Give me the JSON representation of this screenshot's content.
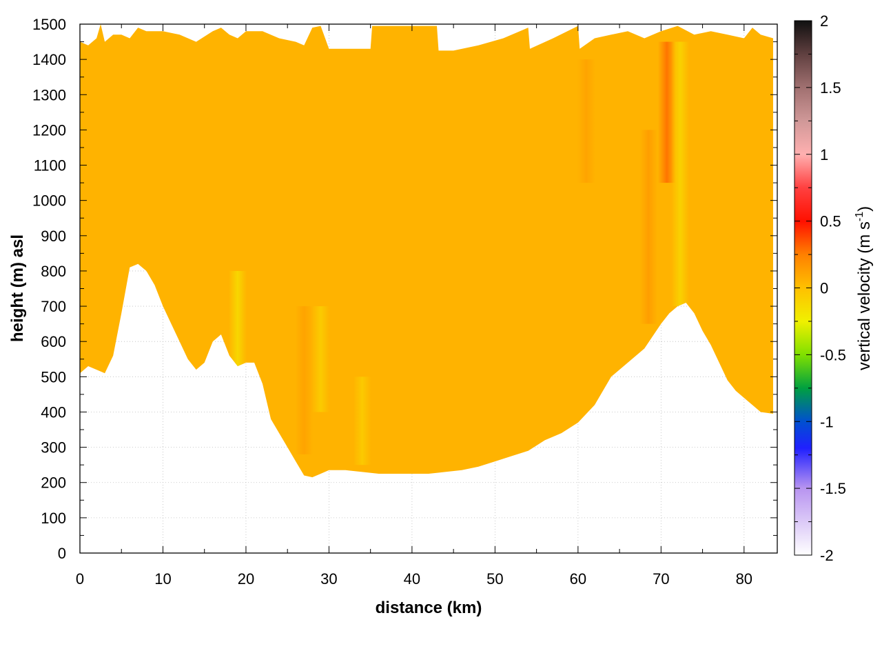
{
  "chart_data": {
    "type": "heatmap",
    "title": "",
    "xlabel": "distance (km)",
    "ylabel": "height (m) asl",
    "xlim": [
      0,
      84
    ],
    "ylim": [
      0,
      1500
    ],
    "x_ticks": [
      0,
      10,
      20,
      30,
      40,
      50,
      60,
      70,
      80
    ],
    "y_ticks": [
      0,
      100,
      200,
      300,
      400,
      500,
      600,
      700,
      800,
      900,
      1000,
      1100,
      1200,
      1300,
      1400,
      1500
    ],
    "x_tick_labels": [
      "0",
      "10",
      "20",
      "30",
      "40",
      "50",
      "60",
      "70",
      "80"
    ],
    "y_tick_labels": [
      "0",
      "100",
      "200",
      "300",
      "400",
      "500",
      "600",
      "700",
      "800",
      "900",
      "1000",
      "1100",
      "1200",
      "1300",
      "1400",
      "1500"
    ],
    "grid": true,
    "colorbar": {
      "label_main": "vertical velocity (m s",
      "label_sup": "-1",
      "label_close": ")",
      "range": [
        -2,
        2
      ],
      "ticks": [
        2,
        1.5,
        1,
        0.5,
        0,
        -0.5,
        -1,
        -1.5,
        -2
      ],
      "tick_labels": [
        "2",
        "1.5",
        "1",
        "0.5",
        "0",
        "-0.5",
        "-1",
        "-1.5",
        "-2"
      ],
      "stops": [
        {
          "value": -2.0,
          "color": "#ffffff"
        },
        {
          "value": -1.5,
          "color": "#b894f0"
        },
        {
          "value": -1.2,
          "color": "#2020ff"
        },
        {
          "value": -1.0,
          "color": "#0050d0"
        },
        {
          "value": -0.75,
          "color": "#00a040"
        },
        {
          "value": -0.5,
          "color": "#80e000"
        },
        {
          "value": -0.25,
          "color": "#f0f000"
        },
        {
          "value": 0.0,
          "color": "#ffc000"
        },
        {
          "value": 0.25,
          "color": "#ff8000"
        },
        {
          "value": 0.5,
          "color": "#ff1000"
        },
        {
          "value": 0.75,
          "color": "#ff4040"
        },
        {
          "value": 1.0,
          "color": "#ffb0b0"
        },
        {
          "value": 1.25,
          "color": "#d09898"
        },
        {
          "value": 1.5,
          "color": "#a07070"
        },
        {
          "value": 1.75,
          "color": "#604040"
        },
        {
          "value": 2.0,
          "color": "#101010"
        }
      ]
    },
    "field": {
      "dominant_value": 0.05,
      "bottom_boundary": [
        [
          0,
          510
        ],
        [
          1,
          530
        ],
        [
          2,
          520
        ],
        [
          3,
          510
        ],
        [
          4,
          560
        ],
        [
          5,
          680
        ],
        [
          6,
          810
        ],
        [
          7,
          820
        ],
        [
          8,
          800
        ],
        [
          9,
          760
        ],
        [
          10,
          700
        ],
        [
          11,
          650
        ],
        [
          12,
          600
        ],
        [
          13,
          550
        ],
        [
          14,
          520
        ],
        [
          15,
          540
        ],
        [
          16,
          600
        ],
        [
          17,
          620
        ],
        [
          18,
          560
        ],
        [
          19,
          530
        ],
        [
          20,
          540
        ],
        [
          21,
          540
        ],
        [
          22,
          480
        ],
        [
          23,
          380
        ],
        [
          24,
          340
        ],
        [
          25,
          300
        ],
        [
          26,
          260
        ],
        [
          27,
          220
        ],
        [
          28,
          215
        ],
        [
          29,
          225
        ],
        [
          30,
          235
        ],
        [
          32,
          235
        ],
        [
          34,
          230
        ],
        [
          36,
          225
        ],
        [
          38,
          225
        ],
        [
          40,
          225
        ],
        [
          42,
          225
        ],
        [
          44,
          230
        ],
        [
          46,
          235
        ],
        [
          48,
          245
        ],
        [
          50,
          260
        ],
        [
          52,
          275
        ],
        [
          54,
          290
        ],
        [
          56,
          320
        ],
        [
          58,
          340
        ],
        [
          60,
          370
        ],
        [
          62,
          420
        ],
        [
          63,
          460
        ],
        [
          64,
          500
        ],
        [
          66,
          540
        ],
        [
          68,
          580
        ],
        [
          70,
          650
        ],
        [
          71,
          680
        ],
        [
          72,
          700
        ],
        [
          73,
          710
        ],
        [
          74,
          680
        ],
        [
          75,
          630
        ],
        [
          76,
          590
        ],
        [
          77,
          540
        ],
        [
          78,
          490
        ],
        [
          79,
          460
        ],
        [
          80,
          440
        ],
        [
          81,
          420
        ],
        [
          82,
          400
        ],
        [
          83.5,
          395
        ]
      ],
      "top_boundary": [
        [
          0,
          1450
        ],
        [
          1,
          1440
        ],
        [
          2,
          1460
        ],
        [
          2.5,
          1500
        ],
        [
          3,
          1450
        ],
        [
          4,
          1470
        ],
        [
          5,
          1470
        ],
        [
          6,
          1460
        ],
        [
          7,
          1490
        ],
        [
          8,
          1480
        ],
        [
          10,
          1480
        ],
        [
          12,
          1470
        ],
        [
          14,
          1450
        ],
        [
          16,
          1480
        ],
        [
          17,
          1490
        ],
        [
          18,
          1470
        ],
        [
          19,
          1460
        ],
        [
          20,
          1480
        ],
        [
          22,
          1480
        ],
        [
          24,
          1460
        ],
        [
          26,
          1450
        ],
        [
          27,
          1440
        ],
        [
          28,
          1490
        ],
        [
          29,
          1495
        ],
        [
          30,
          1430
        ],
        [
          33,
          1430
        ],
        [
          35,
          1430
        ],
        [
          35.2,
          1495
        ],
        [
          43,
          1495
        ],
        [
          43.2,
          1425
        ],
        [
          45,
          1425
        ],
        [
          48,
          1440
        ],
        [
          51,
          1460
        ],
        [
          54,
          1490
        ],
        [
          54.2,
          1430
        ],
        [
          57,
          1460
        ],
        [
          60,
          1495
        ],
        [
          60.2,
          1430
        ],
        [
          62,
          1460
        ],
        [
          64,
          1470
        ],
        [
          66,
          1480
        ],
        [
          68,
          1460
        ],
        [
          70,
          1480
        ],
        [
          72,
          1495
        ],
        [
          74,
          1470
        ],
        [
          76,
          1480
        ],
        [
          78,
          1470
        ],
        [
          80,
          1460
        ],
        [
          81,
          1490
        ],
        [
          82,
          1470
        ],
        [
          83.5,
          1460
        ]
      ],
      "features": [
        {
          "x": 19,
          "y_from": 520,
          "y_to": 800,
          "value": -0.15
        },
        {
          "x": 27,
          "y_from": 280,
          "y_to": 700,
          "value": 0.12
        },
        {
          "x": 29,
          "y_from": 400,
          "y_to": 700,
          "value": -0.08
        },
        {
          "x": 34,
          "y_from": 250,
          "y_to": 500,
          "value": -0.07
        },
        {
          "x": 61,
          "y_from": 1050,
          "y_to": 1400,
          "value": 0.12
        },
        {
          "x": 68.5,
          "y_from": 650,
          "y_to": 1200,
          "value": 0.15
        },
        {
          "x": 70.7,
          "y_from": 1050,
          "y_to": 1450,
          "value": 0.3
        },
        {
          "x": 72.3,
          "y_from": 700,
          "y_to": 1450,
          "value": -0.12
        }
      ]
    }
  }
}
